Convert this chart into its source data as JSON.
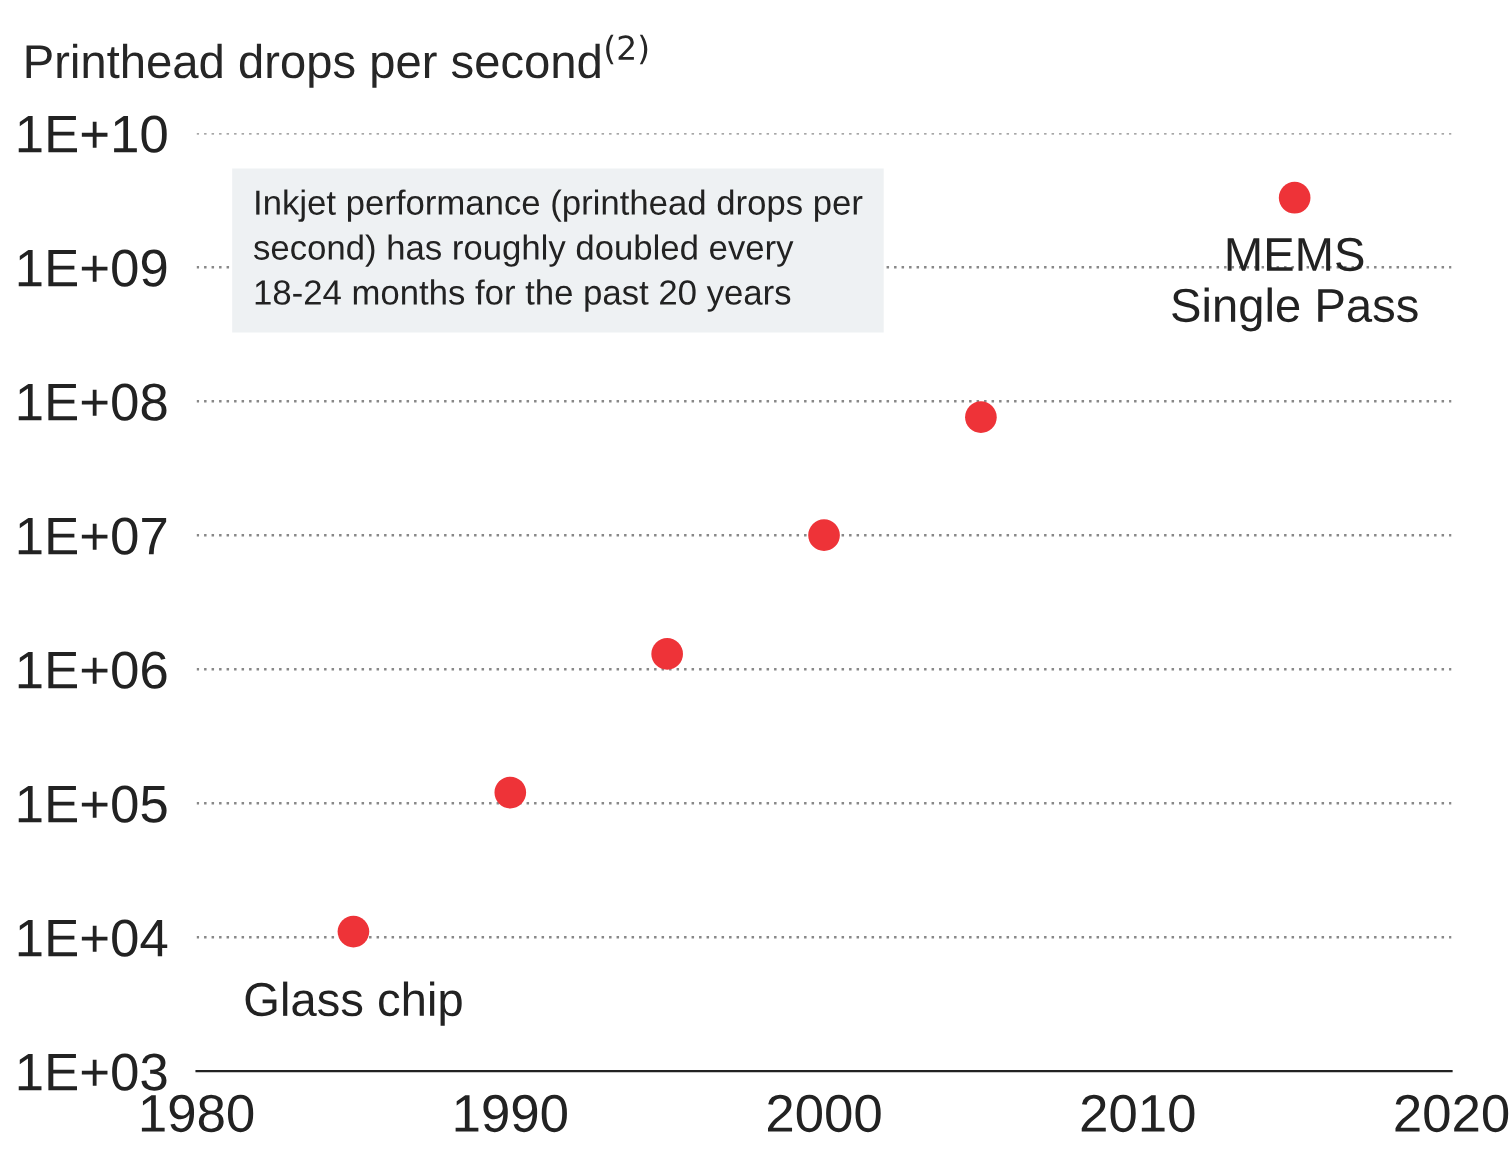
{
  "chart_data": {
    "type": "scatter",
    "title": "Printhead drops per second$^{(2)}$",
    "x": [
      1985,
      1990,
      1995,
      2000,
      2005,
      2015
    ],
    "series": [
      {
        "color": "#ee3338",
        "values": [
          11000,
          120000,
          1300000,
          10000000,
          76000000,
          3300000000
        ]
      }
    ],
    "log": "y",
    "xlim": [
      1980,
      2020
    ],
    "xticks": [
      1980,
      1990,
      2000,
      2010,
      2020
    ],
    "ylim": [
      1000,
      10000000000
    ],
    "yticks": [
      {
        "value": 1000,
        "label": "1E+03"
      },
      {
        "value": 10000,
        "label": "1E+04"
      },
      {
        "value": 100000,
        "label": "1E+05"
      },
      {
        "value": 1000000,
        "label": "1E+06"
      },
      {
        "value": 10000000,
        "label": "1E+07"
      },
      {
        "value": 100000000,
        "label": "1E+08"
      },
      {
        "value": 1000000000,
        "label": "1E+09"
      },
      {
        "value": 10000000000,
        "label": "1E+10"
      }
    ],
    "grid": "y",
    "marker": "circle",
    "legend": false,
    "annotations": [
      "Inkjet performance (printhead drops per\nsecond) has roughly doubled every\n18-24 months for the past 20 years",
      {
        "text": "MEMS\nSingle Pass",
        "x": 2015,
        "y": 3300000000
      },
      {
        "text": "Glass chip",
        "x": 1985,
        "y": 11000
      }
    ]
  }
}
